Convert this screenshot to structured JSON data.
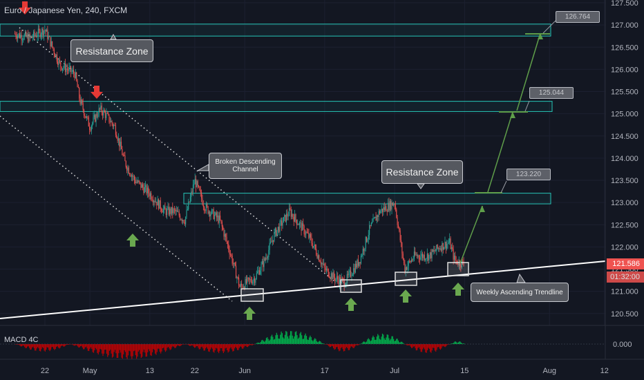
{
  "symbol": {
    "title": "Euro / Japanese Yen, 240, FXCM"
  },
  "indicator": {
    "label": "MACD 4C",
    "zero_label": "0.000"
  },
  "annotations": {
    "resistance_zone_top": "Resistance Zone",
    "resistance_zone_mid": "Resistance Zone",
    "broken_channel_line1": "Broken Descending",
    "broken_channel_line2": "Channel",
    "trendline_label": "Weekly Ascending Trendline"
  },
  "targets": [
    "126.764",
    "125.044",
    "123.220"
  ],
  "price_badges": {
    "last_price": "121.586",
    "countdown": "01:32:00"
  },
  "colors": {
    "background": "#131722",
    "up_candle": "#26a69a",
    "down_candle": "#ef5350",
    "zone_border": "#26c6b8",
    "arrow_up": "#6aa84f",
    "arrow_down": "#e53935",
    "trendline": "#ffffff",
    "macd_positive": "#00c853",
    "macd_negative": "#d50000"
  },
  "chart_data": {
    "type": "candlestick",
    "title": "Euro / Japanese Yen, 240, FXCM",
    "price_axis": {
      "ticks": [
        "127.500",
        "127.000",
        "126.500",
        "126.000",
        "125.500",
        "125.000",
        "124.500",
        "124.000",
        "123.500",
        "123.000",
        "122.500",
        "122.000",
        "121.500",
        "121.000",
        "120.500"
      ],
      "ylim": [
        120.3,
        127.6
      ]
    },
    "time_axis": {
      "ticks": [
        "22",
        "May",
        "13",
        "22",
        "Jun",
        "17",
        "Jul",
        "15",
        "Aug",
        "12"
      ]
    },
    "resistance_zones": [
      {
        "label": "Resistance Zone",
        "low": 126.75,
        "high": 127.02
      },
      {
        "low": 125.05,
        "high": 125.28
      },
      {
        "label": "Resistance Zone",
        "low": 122.97,
        "high": 123.21
      }
    ],
    "targets": [
      126.764,
      125.044,
      123.22
    ],
    "last_price": 121.586,
    "price_path": [
      [
        "Apr 16",
        126.8
      ],
      [
        "Apr 19",
        126.7
      ],
      [
        "Apr 22",
        126.9
      ],
      [
        "Apr 25",
        126.1
      ],
      [
        "Apr 28",
        125.9
      ],
      [
        "Apr 29",
        125.3
      ],
      [
        "May 1",
        124.7
      ],
      [
        "May 3",
        125.1
      ],
      [
        "May 4",
        125.0
      ],
      [
        "May 6",
        124.7
      ],
      [
        "May 8",
        123.9
      ],
      [
        "May 10",
        123.5
      ],
      [
        "May 13",
        123.2
      ],
      [
        "May 16",
        122.8
      ],
      [
        "May 18",
        122.8
      ],
      [
        "May 20",
        122.6
      ],
      [
        "May 22",
        123.5
      ],
      [
        "May 24",
        122.9
      ],
      [
        "May 27",
        122.6
      ],
      [
        "May 29",
        121.9
      ],
      [
        "May 31",
        121.1
      ],
      [
        "Jun 3",
        121.3
      ],
      [
        "Jun 5",
        121.7
      ],
      [
        "Jun 7",
        122.3
      ],
      [
        "Jun 10",
        122.8
      ],
      [
        "Jun 12",
        122.5
      ],
      [
        "Jun 14",
        122.2
      ],
      [
        "Jun 17",
        121.5
      ],
      [
        "Jun 19",
        121.3
      ],
      [
        "Jun 21",
        121.2
      ],
      [
        "Jun 24",
        121.7
      ],
      [
        "Jun 26",
        122.4
      ],
      [
        "Jun 28",
        122.8
      ],
      [
        "Jul 1",
        123.0
      ],
      [
        "Jul 3",
        121.5
      ],
      [
        "Jul 5",
        121.8
      ],
      [
        "Jul 8",
        121.8
      ],
      [
        "Jul 10",
        122.0
      ],
      [
        "Jul 12",
        122.1
      ],
      [
        "Jul 13",
        121.7
      ],
      [
        "Jul 15",
        121.6
      ]
    ],
    "trendline": {
      "label": "Weekly Ascending Trendline",
      "from": [
        "Apr 16",
        120.5
      ],
      "to": [
        "Aug 18",
        121.7
      ]
    },
    "macd_histogram": {
      "zero": 0.0,
      "segments": [
        {
          "from": "Apr 16",
          "to": "Apr 27",
          "sign": "negative",
          "peak": 0.5
        },
        {
          "from": "Apr 27",
          "to": "May 20",
          "sign": "negative",
          "peak": 1.0
        },
        {
          "from": "May 20",
          "to": "Jun 3",
          "sign": "negative",
          "peak": 0.6
        },
        {
          "from": "Jun 3",
          "to": "Jun 17",
          "sign": "positive",
          "peak": 0.9
        },
        {
          "from": "Jun 17",
          "to": "Jun 24",
          "sign": "negative",
          "peak": 0.5
        },
        {
          "from": "Jun 24",
          "to": "Jul 3",
          "sign": "positive",
          "peak": 0.7
        },
        {
          "from": "Jul 3",
          "to": "Jul 12",
          "sign": "negative",
          "peak": 0.6
        },
        {
          "from": "Jul 12",
          "to": "Jul 15",
          "sign": "positive",
          "peak": 0.2
        }
      ]
    }
  }
}
